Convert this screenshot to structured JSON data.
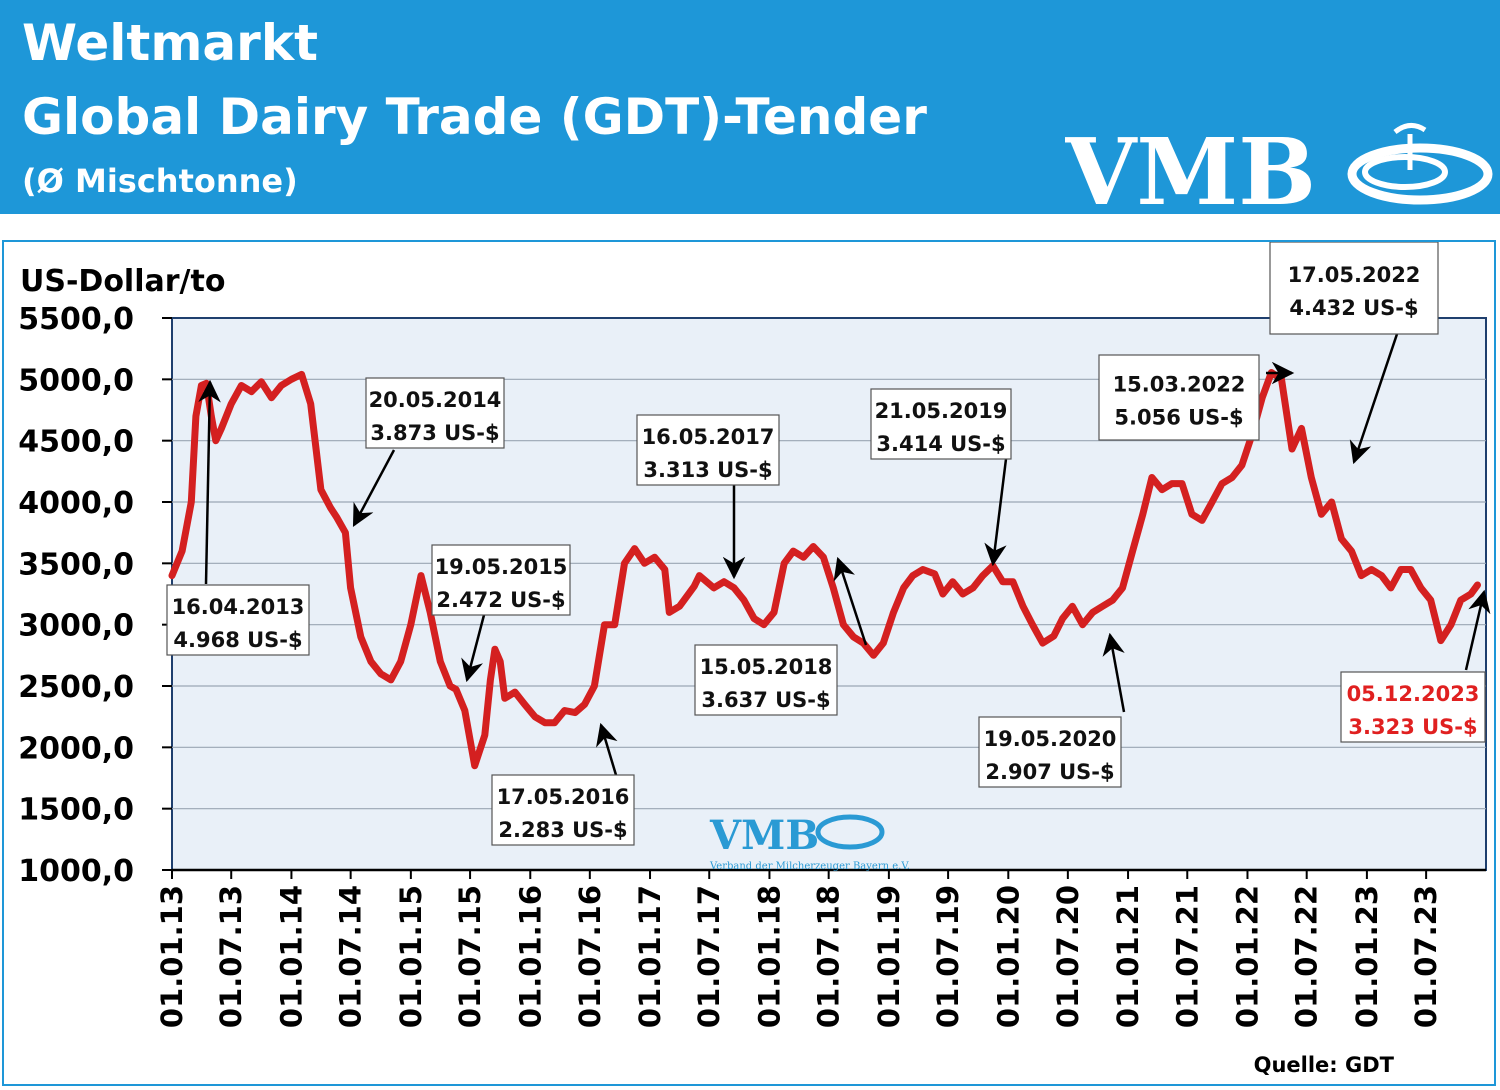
{
  "header": {
    "title_line1": "Weltmarkt",
    "title_line2": "Global Dairy Trade (GDT)-Tender",
    "title_line3": "(Ø Mischtonne)",
    "logo_text": "VMB"
  },
  "colors": {
    "header_bg": "#1e97d8",
    "series": "#d42020",
    "plot_bg": "#e9f0f8",
    "highlight": "#e02020"
  },
  "chart_data": {
    "type": "line",
    "title": "Global Dairy Trade (GDT)-Tender",
    "ylabel": "US-Dollar/to",
    "ylim": [
      1000,
      5500
    ],
    "yticks": [
      "5500,0",
      "5000,0",
      "4500,0",
      "4000,0",
      "3500,0",
      "3000,0",
      "2500,0",
      "2000,0",
      "1500,0",
      "1000,0"
    ],
    "xlim": [
      "2013-01-01",
      "2023-12-31"
    ],
    "xticks": [
      "01.01.13",
      "01.07.13",
      "01.01.14",
      "01.07.14",
      "01.01.15",
      "01.07.15",
      "01.01.16",
      "01.07.16",
      "01.01.17",
      "01.07.17",
      "01.01.18",
      "01.07.18",
      "01.01.19",
      "01.07.19",
      "01.01.20",
      "01.07.20",
      "01.01.21",
      "01.07.21",
      "01.01.22",
      "01.07.22",
      "01.01.23",
      "01.07.23"
    ],
    "grid": true,
    "source": "Quelle: GDT",
    "watermark": "VMB",
    "watermark_subtitle": "Verband der Milcherzeuger Bayern e.V.",
    "series": [
      {
        "color": "#d42020",
        "points": [
          [
            "2013-01-01",
            3400
          ],
          [
            "2013-02-01",
            3600
          ],
          [
            "2013-03-01",
            4000
          ],
          [
            "2013-03-15",
            4700
          ],
          [
            "2013-04-01",
            4950
          ],
          [
            "2013-04-16",
            4968
          ],
          [
            "2013-05-01",
            4700
          ],
          [
            "2013-05-15",
            4500
          ],
          [
            "2013-06-01",
            4600
          ],
          [
            "2013-07-01",
            4800
          ],
          [
            "2013-08-01",
            4950
          ],
          [
            "2013-09-01",
            4900
          ],
          [
            "2013-10-01",
            4980
          ],
          [
            "2013-11-01",
            4850
          ],
          [
            "2013-12-01",
            4950
          ],
          [
            "2014-01-01",
            5000
          ],
          [
            "2014-02-01",
            5040
          ],
          [
            "2014-03-01",
            4800
          ],
          [
            "2014-04-01",
            4100
          ],
          [
            "2014-05-01",
            3950
          ],
          [
            "2014-05-20",
            3873
          ],
          [
            "2014-06-15",
            3750
          ],
          [
            "2014-07-01",
            3300
          ],
          [
            "2014-08-01",
            2900
          ],
          [
            "2014-09-01",
            2700
          ],
          [
            "2014-10-01",
            2600
          ],
          [
            "2014-11-01",
            2550
          ],
          [
            "2014-12-01",
            2700
          ],
          [
            "2015-01-01",
            3000
          ],
          [
            "2015-02-01",
            3400
          ],
          [
            "2015-03-01",
            3100
          ],
          [
            "2015-04-01",
            2700
          ],
          [
            "2015-05-01",
            2500
          ],
          [
            "2015-05-19",
            2472
          ],
          [
            "2015-06-15",
            2300
          ],
          [
            "2015-07-15",
            1850
          ],
          [
            "2015-08-15",
            2100
          ],
          [
            "2015-09-01",
            2550
          ],
          [
            "2015-09-15",
            2800
          ],
          [
            "2015-10-01",
            2700
          ],
          [
            "2015-10-15",
            2400
          ],
          [
            "2015-11-15",
            2450
          ],
          [
            "2015-12-15",
            2350
          ],
          [
            "2016-01-15",
            2250
          ],
          [
            "2016-02-15",
            2200
          ],
          [
            "2016-03-15",
            2200
          ],
          [
            "2016-04-15",
            2300
          ],
          [
            "2016-05-17",
            2283
          ],
          [
            "2016-06-15",
            2350
          ],
          [
            "2016-07-15",
            2500
          ],
          [
            "2016-08-15",
            3000
          ],
          [
            "2016-09-15",
            3000
          ],
          [
            "2016-10-15",
            3500
          ],
          [
            "2016-11-15",
            3620
          ],
          [
            "2016-12-15",
            3500
          ],
          [
            "2017-01-15",
            3550
          ],
          [
            "2017-02-15",
            3450
          ],
          [
            "2017-03-01",
            3100
          ],
          [
            "2017-04-01",
            3150
          ],
          [
            "2017-05-16",
            3313
          ],
          [
            "2017-06-01",
            3400
          ],
          [
            "2017-07-15",
            3300
          ],
          [
            "2017-08-15",
            3350
          ],
          [
            "2017-09-15",
            3300
          ],
          [
            "2017-10-15",
            3200
          ],
          [
            "2017-11-15",
            3050
          ],
          [
            "2017-12-15",
            3000
          ],
          [
            "2018-01-15",
            3100
          ],
          [
            "2018-02-15",
            3500
          ],
          [
            "2018-03-15",
            3600
          ],
          [
            "2018-04-15",
            3550
          ],
          [
            "2018-05-15",
            3637
          ],
          [
            "2018-06-15",
            3550
          ],
          [
            "2018-07-15",
            3300
          ],
          [
            "2018-08-15",
            3000
          ],
          [
            "2018-09-15",
            2900
          ],
          [
            "2018-10-15",
            2850
          ],
          [
            "2018-11-15",
            2750
          ],
          [
            "2018-12-15",
            2850
          ],
          [
            "2019-01-15",
            3100
          ],
          [
            "2019-02-15",
            3300
          ],
          [
            "2019-03-15",
            3400
          ],
          [
            "2019-04-15",
            3450
          ],
          [
            "2019-05-21",
            3414
          ],
          [
            "2019-06-15",
            3250
          ],
          [
            "2019-07-15",
            3350
          ],
          [
            "2019-08-15",
            3250
          ],
          [
            "2019-09-15",
            3300
          ],
          [
            "2019-10-15",
            3400
          ],
          [
            "2019-11-15",
            3480
          ],
          [
            "2019-12-15",
            3350
          ],
          [
            "2020-01-15",
            3350
          ],
          [
            "2020-02-15",
            3150
          ],
          [
            "2020-03-15",
            3000
          ],
          [
            "2020-04-15",
            2850
          ],
          [
            "2020-05-19",
            2907
          ],
          [
            "2020-06-15",
            3050
          ],
          [
            "2020-07-15",
            3150
          ],
          [
            "2020-08-15",
            3000
          ],
          [
            "2020-09-15",
            3100
          ],
          [
            "2020-10-15",
            3150
          ],
          [
            "2020-11-15",
            3200
          ],
          [
            "2020-12-15",
            3300
          ],
          [
            "2021-01-15",
            3600
          ],
          [
            "2021-02-15",
            3900
          ],
          [
            "2021-03-15",
            4200
          ],
          [
            "2021-04-15",
            4100
          ],
          [
            "2021-05-15",
            4150
          ],
          [
            "2021-06-15",
            4150
          ],
          [
            "2021-07-15",
            3900
          ],
          [
            "2021-08-15",
            3850
          ],
          [
            "2021-09-15",
            4000
          ],
          [
            "2021-10-15",
            4150
          ],
          [
            "2021-11-15",
            4200
          ],
          [
            "2021-12-15",
            4300
          ],
          [
            "2022-01-15",
            4550
          ],
          [
            "2022-02-15",
            4850
          ],
          [
            "2022-03-15",
            5056
          ],
          [
            "2022-04-15",
            5000
          ],
          [
            "2022-05-17",
            4432
          ],
          [
            "2022-06-15",
            4600
          ],
          [
            "2022-07-15",
            4200
          ],
          [
            "2022-08-15",
            3900
          ],
          [
            "2022-09-15",
            4000
          ],
          [
            "2022-10-15",
            3700
          ],
          [
            "2022-11-15",
            3600
          ],
          [
            "2022-12-15",
            3400
          ],
          [
            "2023-01-15",
            3450
          ],
          [
            "2023-02-15",
            3400
          ],
          [
            "2023-03-15",
            3300
          ],
          [
            "2023-04-15",
            3450
          ],
          [
            "2023-05-15",
            3450
          ],
          [
            "2023-06-15",
            3300
          ],
          [
            "2023-07-15",
            3200
          ],
          [
            "2023-08-15",
            2870
          ],
          [
            "2023-09-15",
            3000
          ],
          [
            "2023-10-15",
            3200
          ],
          [
            "2023-11-15",
            3250
          ],
          [
            "2023-12-05",
            3323
          ]
        ]
      }
    ],
    "annotations": [
      {
        "date_label": "16.04.2013",
        "value_label": "4.968 US-$",
        "highlight": false
      },
      {
        "date_label": "20.05.2014",
        "value_label": "3.873 US-$",
        "highlight": false
      },
      {
        "date_label": "19.05.2015",
        "value_label": "2.472 US-$",
        "highlight": false
      },
      {
        "date_label": "17.05.2016",
        "value_label": "2.283 US-$",
        "highlight": false
      },
      {
        "date_label": "16.05.2017",
        "value_label": "3.313 US-$",
        "highlight": false
      },
      {
        "date_label": "15.05.2018",
        "value_label": "3.637 US-$",
        "highlight": false
      },
      {
        "date_label": "21.05.2019",
        "value_label": "3.414 US-$",
        "highlight": false
      },
      {
        "date_label": "19.05.2020",
        "value_label": "2.907 US-$",
        "highlight": false
      },
      {
        "date_label": "15.03.2022",
        "value_label": "5.056 US-$",
        "highlight": false
      },
      {
        "date_label": "17.05.2022",
        "value_label": "4.432 US-$",
        "highlight": false
      },
      {
        "date_label": "05.12.2023",
        "value_label": "3.323 US-$",
        "highlight": true
      }
    ]
  }
}
